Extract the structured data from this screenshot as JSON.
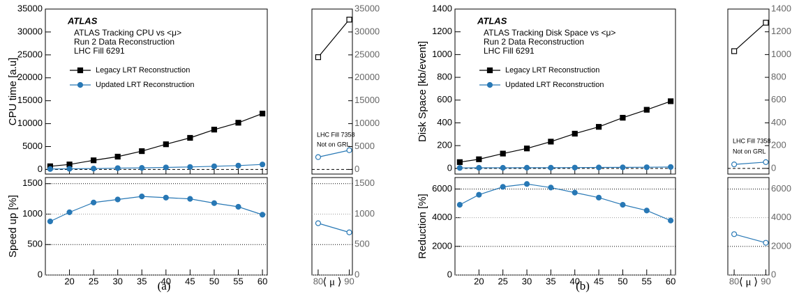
{
  "chart_data": [
    {
      "type": "line",
      "caption": "(a)",
      "ylabel": "CPU time [a.u]",
      "xlabel": "⟨ μ ⟩",
      "annotation": {
        "experiment": "ATLAS",
        "lines": [
          "ATLAS Tracking CPU vs <μ>",
          "Run 2 Data Reconstruction",
          "LHC Fill 6291"
        ]
      },
      "side_note": [
        "LHC Fill 7358",
        "Not on GRL"
      ],
      "zero_line": true,
      "main": {
        "x": [
          16,
          20,
          25,
          30,
          35,
          40,
          45,
          50,
          55,
          60
        ],
        "xlim": [
          15,
          61
        ],
        "xticks": [
          20,
          25,
          30,
          35,
          40,
          45,
          50,
          55,
          60
        ],
        "ylim": [
          -1000,
          35000
        ],
        "yticks": [
          0,
          5000,
          10000,
          15000,
          20000,
          25000,
          30000,
          35000
        ],
        "series": [
          {
            "name": "Legacy LRT Reconstruction",
            "color": "#000000",
            "marker": "square",
            "values": [
              700,
              1100,
              2000,
              2800,
              4000,
              5500,
              6900,
              8700,
              10200,
              12200
            ]
          },
          {
            "name": "Updated LRT Reconstruction",
            "color": "#2878b5",
            "marker": "circle",
            "values": [
              100,
              150,
              200,
              300,
              350,
              450,
              550,
              700,
              850,
              1100
            ]
          }
        ]
      },
      "side": {
        "x": [
          80,
          90
        ],
        "xlim": [
          78,
          91
        ],
        "xticks": [
          80,
          90
        ],
        "series": [
          {
            "values": [
              24500,
              32700
            ]
          },
          {
            "values": [
              2700,
              4200
            ]
          }
        ]
      },
      "ratio": {
        "ylabel": "Speed up [%]",
        "ylim": [
          0,
          1600
        ],
        "yticks": [
          0,
          500,
          1000,
          1500
        ],
        "grid": true,
        "color": "#2878b5",
        "values": [
          880,
          1030,
          1190,
          1240,
          1290,
          1270,
          1250,
          1180,
          1120,
          990
        ],
        "side_values": [
          850,
          700
        ]
      }
    },
    {
      "type": "line",
      "caption": "(b)",
      "ylabel": "Disk Space [kb/event]",
      "xlabel": "⟨ μ ⟩",
      "annotation": {
        "experiment": "ATLAS",
        "lines": [
          "ATLAS Tracking Disk Space vs <μ>",
          "Run 2 Data Reconstruction",
          "LHC Fill 6291"
        ]
      },
      "side_note": [
        "LHC Fill 7358",
        "Not on GRL"
      ],
      "zero_line": true,
      "main": {
        "x": [
          16,
          20,
          25,
          30,
          35,
          40,
          45,
          50,
          55,
          60
        ],
        "xlim": [
          15,
          61
        ],
        "xticks": [
          20,
          25,
          30,
          35,
          40,
          45,
          50,
          55,
          60
        ],
        "ylim": [
          -50,
          1400
        ],
        "yticks": [
          0,
          200,
          400,
          600,
          800,
          1000,
          1200,
          1400
        ],
        "series": [
          {
            "name": "Legacy LRT Reconstruction",
            "color": "#000000",
            "marker": "square",
            "values": [
              55,
              80,
              130,
              175,
              235,
              305,
              365,
              445,
              515,
              590
            ]
          },
          {
            "name": "Updated LRT Reconstruction",
            "color": "#2878b5",
            "marker": "circle",
            "values": [
              4,
              5,
              5,
              6,
              6,
              7,
              8,
              9,
              10,
              12
            ]
          }
        ]
      },
      "side": {
        "x": [
          80,
          90
        ],
        "xlim": [
          78,
          91
        ],
        "xticks": [
          80,
          90
        ],
        "series": [
          {
            "values": [
              1030,
              1280
            ]
          },
          {
            "values": [
              35,
              55
            ]
          }
        ]
      },
      "ratio": {
        "ylabel": "Reduction [%]",
        "ylim": [
          0,
          6800
        ],
        "yticks": [
          0,
          2000,
          4000,
          6000
        ],
        "grid": true,
        "color": "#2878b5",
        "values": [
          4900,
          5600,
          6150,
          6350,
          6100,
          5750,
          5400,
          4900,
          4500,
          3800
        ],
        "side_values": [
          2850,
          2250
        ]
      }
    }
  ]
}
